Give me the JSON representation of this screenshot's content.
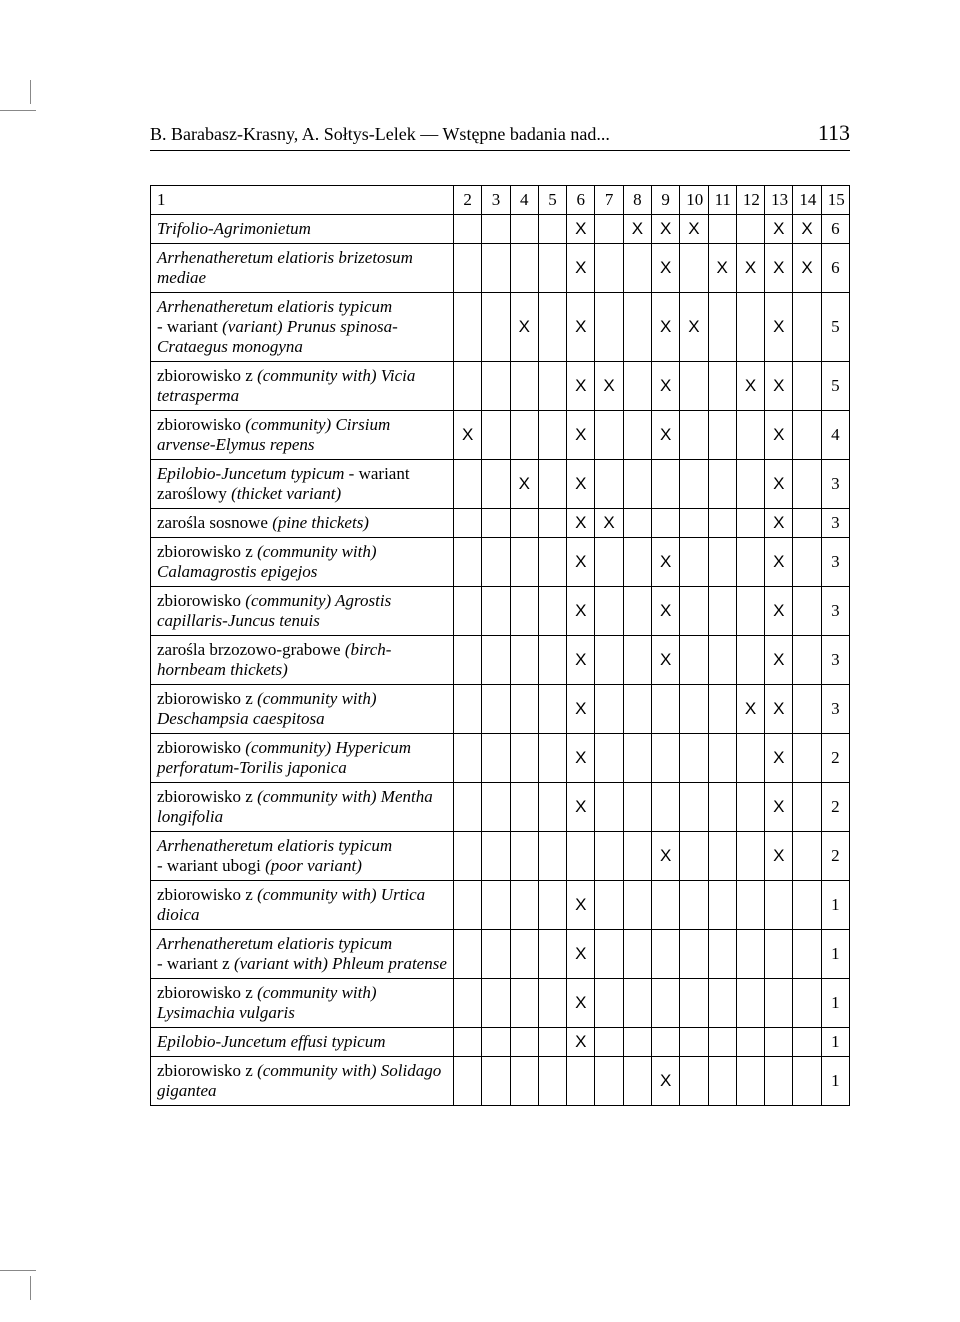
{
  "header": {
    "title": "B. Barabasz-Krasny, A. Sołtys-Lelek — Wstępne badania nad...",
    "page_number": "113"
  },
  "table": {
    "columns": [
      "1",
      "2",
      "3",
      "4",
      "5",
      "6",
      "7",
      "8",
      "9",
      "10",
      "11",
      "12",
      "13",
      "14",
      "15"
    ],
    "rows": [
      {
        "label_html": "<span class='italic'>Trifolio-Agrimonietum</span>",
        "cells": [
          "",
          "",
          "",
          "",
          "X",
          "",
          "X",
          "X",
          "X",
          "",
          "",
          "X",
          "X",
          "6"
        ]
      },
      {
        "label_html": "<span class='italic'>Arrhenatheretum elatioris brizetosum mediae</span>",
        "cells": [
          "",
          "",
          "",
          "",
          "X",
          "",
          "",
          "X",
          "",
          "X",
          "X",
          "X",
          "X",
          "6"
        ]
      },
      {
        "label_html": "<span class='italic'>Arrhenatheretum elatioris typicum</span><br><span class='roman'>- wariant </span><span class='italic'>(variant) Prunus spinosa-Crataegus monogyna</span>",
        "cells": [
          "",
          "",
          "X",
          "",
          "X",
          "",
          "",
          "X",
          "X",
          "",
          "",
          "X",
          "",
          "5"
        ]
      },
      {
        "label_html": "<span class='roman'>zbiorowisko z </span><span class='italic'>(community with) Vicia tetrasperma</span>",
        "cells": [
          "",
          "",
          "",
          "",
          "X",
          "X",
          "",
          "X",
          "",
          "",
          "X",
          "X",
          "",
          "5"
        ]
      },
      {
        "label_html": "<span class='roman'>zbiorowisko </span><span class='italic'>(community) Cirsium arvense-Elymus repens</span>",
        "cells": [
          "X",
          "",
          "",
          "",
          "X",
          "",
          "",
          "X",
          "",
          "",
          "",
          "X",
          "",
          "4"
        ]
      },
      {
        "label_html": "<span class='italic'>Epilobio-Juncetum typicum</span><span class='roman'> - wariant zaroślowy </span><span class='italic'>(thicket variant)</span>",
        "cells": [
          "",
          "",
          "X",
          "",
          "X",
          "",
          "",
          "",
          "",
          "",
          "",
          "X",
          "",
          "3"
        ]
      },
      {
        "label_html": "<span class='roman'>zarośla sosnowe </span><span class='italic'>(pine thickets)</span>",
        "cells": [
          "",
          "",
          "",
          "",
          "X",
          "X",
          "",
          "",
          "",
          "",
          "",
          "X",
          "",
          "3"
        ]
      },
      {
        "label_html": "<span class='roman'>zbiorowisko z </span><span class='italic'>(community with) Calamagrostis epigejos</span>",
        "cells": [
          "",
          "",
          "",
          "",
          "X",
          "",
          "",
          "X",
          "",
          "",
          "",
          "X",
          "",
          "3"
        ]
      },
      {
        "label_html": "<span class='roman'>zbiorowisko </span><span class='italic'>(community) Agrostis capillaris-Juncus tenuis</span>",
        "cells": [
          "",
          "",
          "",
          "",
          "X",
          "",
          "",
          "X",
          "",
          "",
          "",
          "X",
          "",
          "3"
        ]
      },
      {
        "label_html": "<span class='roman'>zarośla brzozowo-grabowe </span><span class='italic'>(birch-hornbeam thickets)</span>",
        "cells": [
          "",
          "",
          "",
          "",
          "X",
          "",
          "",
          "X",
          "",
          "",
          "",
          "X",
          "",
          "3"
        ]
      },
      {
        "label_html": "<span class='roman'>zbiorowisko z </span><span class='italic'>(community with) Deschampsia caespitosa</span>",
        "cells": [
          "",
          "",
          "",
          "",
          "X",
          "",
          "",
          "",
          "",
          "",
          "X",
          "X",
          "",
          "3"
        ]
      },
      {
        "label_html": "<span class='roman'>zbiorowisko </span><span class='italic'>(community) Hypericum perforatum-Torilis japonica</span>",
        "cells": [
          "",
          "",
          "",
          "",
          "X",
          "",
          "",
          "",
          "",
          "",
          "",
          "X",
          "",
          "2"
        ]
      },
      {
        "label_html": "<span class='roman'>zbiorowisko z </span><span class='italic'>(community with) Mentha longifolia</span>",
        "cells": [
          "",
          "",
          "",
          "",
          "X",
          "",
          "",
          "",
          "",
          "",
          "",
          "X",
          "",
          "2"
        ]
      },
      {
        "label_html": "<span class='italic'>Arrhenatheretum elatioris typicum</span><br><span class='roman'>- wariant ubogi </span><span class='italic'>(poor variant)</span>",
        "cells": [
          "",
          "",
          "",
          "",
          "",
          "",
          "",
          "X",
          "",
          "",
          "",
          "X",
          "",
          "2"
        ]
      },
      {
        "label_html": "<span class='roman'>zbiorowisko z </span><span class='italic'>(community with) Urtica dioica</span>",
        "cells": [
          "",
          "",
          "",
          "",
          "X",
          "",
          "",
          "",
          "",
          "",
          "",
          "",
          "",
          "1"
        ]
      },
      {
        "label_html": "<span class='italic'>Arrhenatheretum elatioris typicum</span><br><span class='roman'>- wariant z </span><span class='italic'>(variant with) Phleum pratense</span>",
        "cells": [
          "",
          "",
          "",
          "",
          "X",
          "",
          "",
          "",
          "",
          "",
          "",
          "",
          "",
          "1"
        ]
      },
      {
        "label_html": "<span class='roman'>zbiorowisko z </span><span class='italic'>(community with) Lysimachia vulgaris</span>",
        "cells": [
          "",
          "",
          "",
          "",
          "X",
          "",
          "",
          "",
          "",
          "",
          "",
          "",
          "",
          "1"
        ]
      },
      {
        "label_html": "<span class='italic'>Epilobio-Juncetum effusi typicum</span>",
        "cells": [
          "",
          "",
          "",
          "",
          "X",
          "",
          "",
          "",
          "",
          "",
          "",
          "",
          "",
          "1"
        ]
      },
      {
        "label_html": "<span class='roman'>zbiorowisko z </span><span class='italic'>(community with) Solidago gigantea</span>",
        "cells": [
          "",
          "",
          "",
          "",
          "",
          "",
          "",
          "X",
          "",
          "",
          "",
          "",
          "",
          "1"
        ]
      }
    ]
  }
}
